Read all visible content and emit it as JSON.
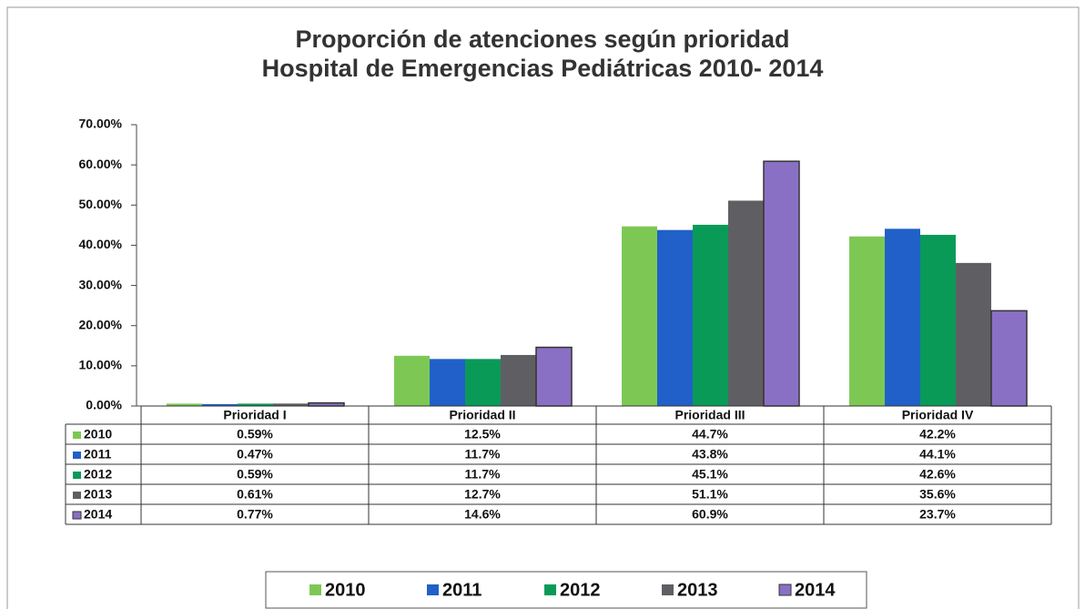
{
  "chart_data": {
    "type": "bar",
    "title": [
      "Proporción de atenciones según prioridad",
      "Hospital de Emergencias Pediátricas 2010- 2014"
    ],
    "categories": [
      "Prioridad I",
      "Prioridad II",
      "Prioridad III",
      "Prioridad IV"
    ],
    "series": [
      {
        "name": "2010",
        "color": "#7dc855",
        "values": [
          0.59,
          12.5,
          44.7,
          42.2
        ],
        "value_labels": [
          "0.59%",
          "12.5%",
          "44.7%",
          "42.2%"
        ]
      },
      {
        "name": "2011",
        "color": "#2060c8",
        "values": [
          0.47,
          11.7,
          43.8,
          44.1
        ],
        "value_labels": [
          "0.47%",
          "11.7%",
          "43.8%",
          "44.1%"
        ]
      },
      {
        "name": "2012",
        "color": "#0a9a58",
        "values": [
          0.59,
          11.7,
          45.1,
          42.6
        ],
        "value_labels": [
          "0.59%",
          "11.7%",
          "45.1%",
          "42.6%"
        ]
      },
      {
        "name": "2013",
        "color": "#5f5f63",
        "values": [
          0.61,
          12.7,
          51.1,
          35.6
        ],
        "value_labels": [
          "0.61%",
          "12.7%",
          "51.1%",
          "35.6%"
        ]
      },
      {
        "name": "2014",
        "color": "#8a70c4",
        "values": [
          0.77,
          14.6,
          60.9,
          23.7
        ],
        "value_labels": [
          "0.77%",
          "14.6%",
          "60.9%",
          "23.7%"
        ]
      }
    ],
    "ylim": [
      0,
      70
    ],
    "yticks": [
      {
        "value": 0,
        "label": "0.00%"
      },
      {
        "value": 10,
        "label": "10.00%"
      },
      {
        "value": 20,
        "label": "20.00%"
      },
      {
        "value": 30,
        "label": "30.00%"
      },
      {
        "value": 40,
        "label": "40.00%"
      },
      {
        "value": 50,
        "label": "50.00%"
      },
      {
        "value": 60,
        "label": "60.00%"
      },
      {
        "value": 70,
        "label": "70.00%"
      }
    ]
  }
}
